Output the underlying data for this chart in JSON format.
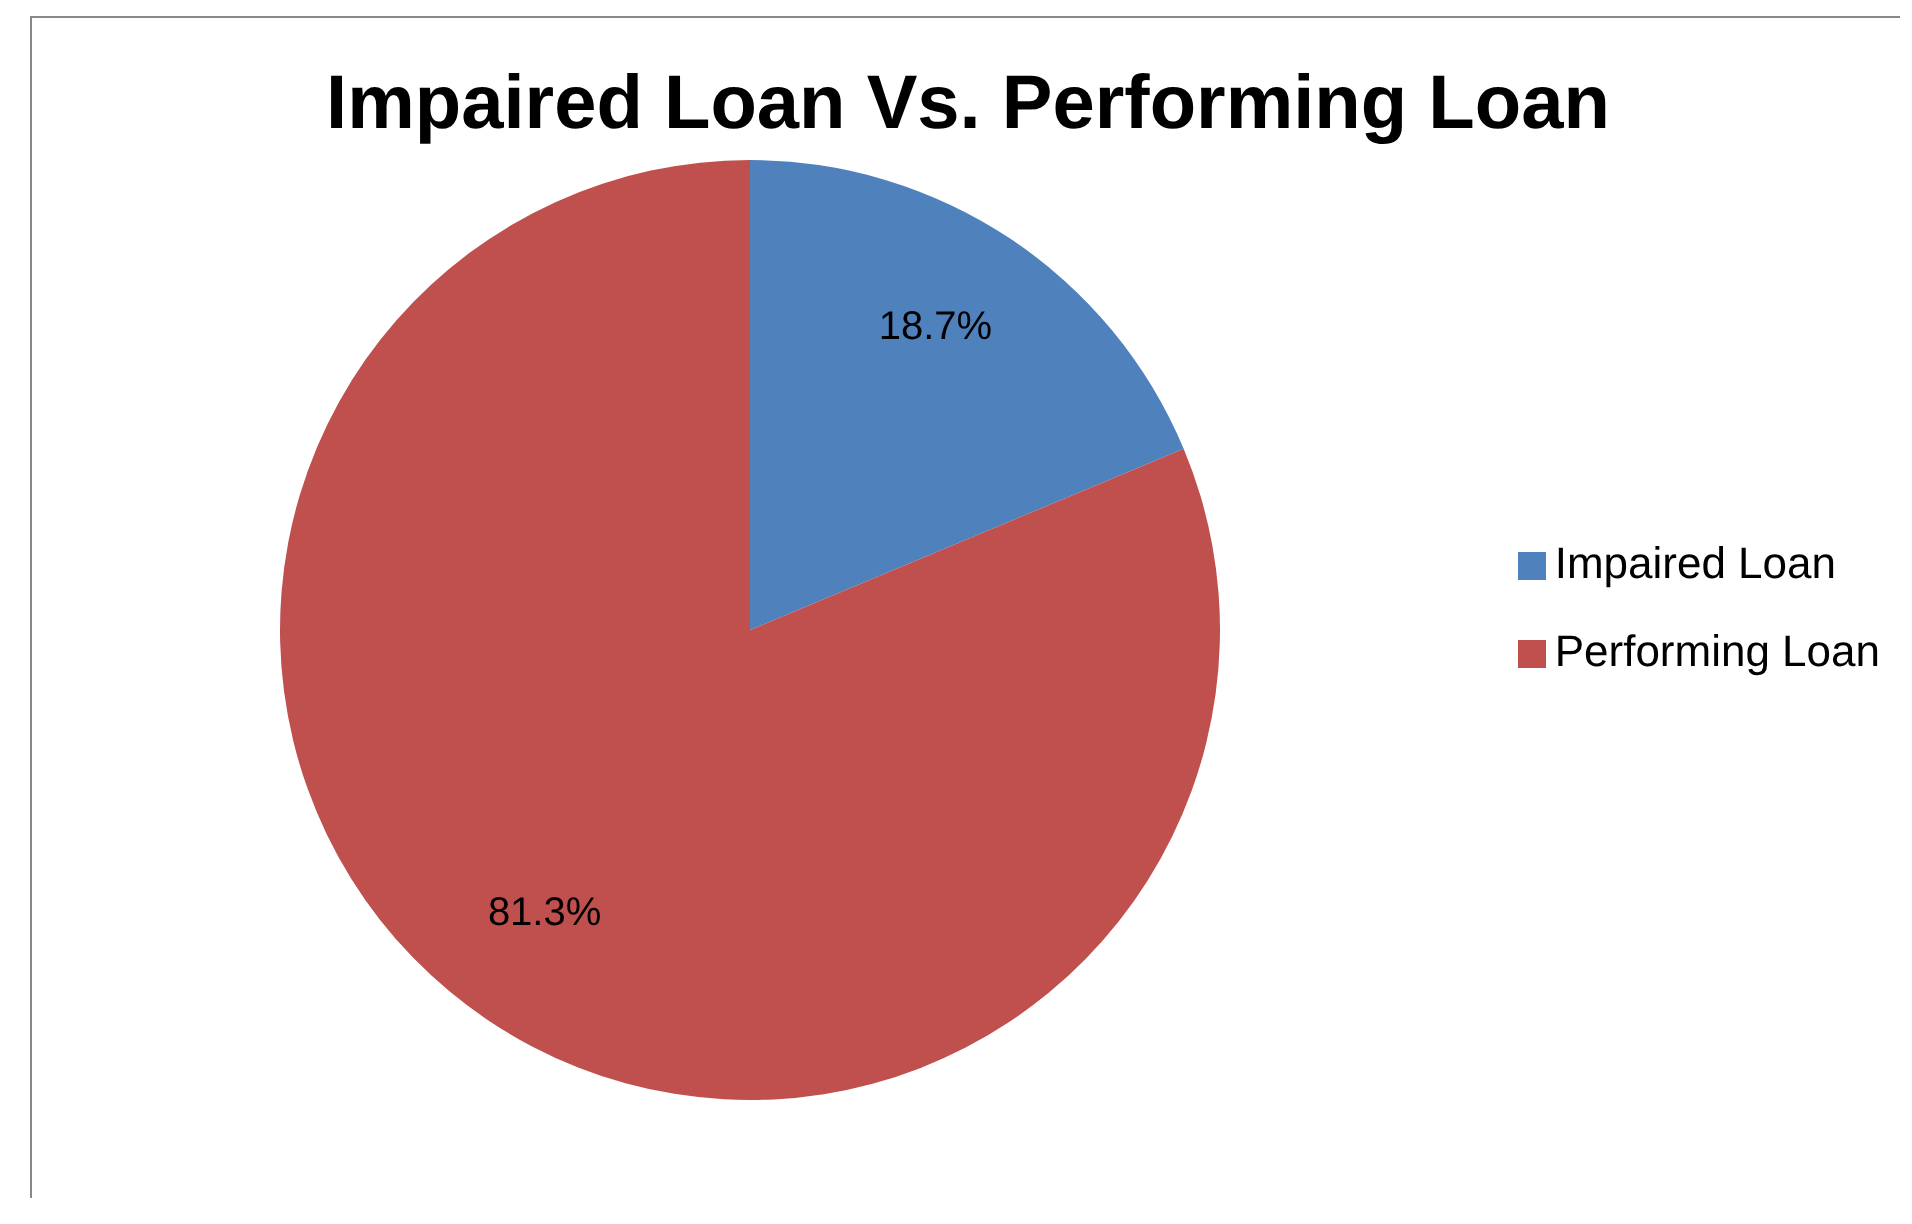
{
  "chart_data": {
    "type": "pie",
    "title": "Impaired Loan Vs. Performing Loan",
    "categories": [
      "Impaired Loan",
      "Performing Loan"
    ],
    "values": [
      18.7,
      81.3
    ],
    "value_labels": [
      "18.7%",
      "81.3%"
    ],
    "colors": [
      "#4f81bd",
      "#c0504d"
    ],
    "legend": "right"
  }
}
